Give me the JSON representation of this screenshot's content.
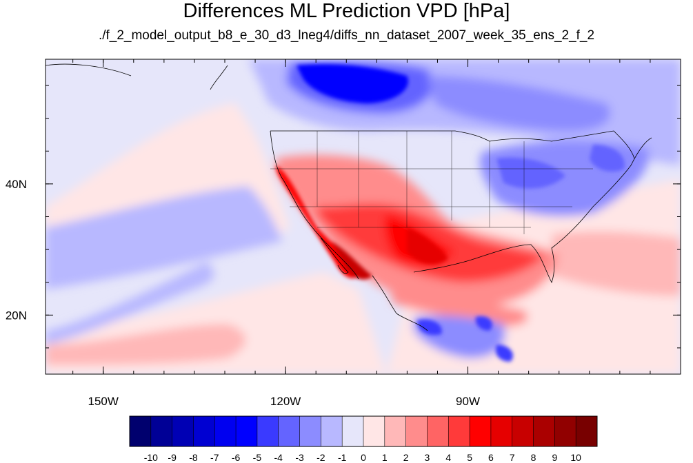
{
  "title": "Differences ML Prediction VPD [hPa]",
  "subtitle": "./f_2_model_output_b8_e_30_d3_lneg4/diffs_nn_dataset_2007_week_35_ens_2_f_2",
  "axes": {
    "lat_ticks": [
      {
        "value": 40,
        "label": "40N"
      },
      {
        "value": 20,
        "label": "20N"
      }
    ],
    "lon_ticks": [
      {
        "value": -150,
        "label": "150W"
      },
      {
        "value": -120,
        "label": "120W"
      },
      {
        "value": -90,
        "label": "90W"
      }
    ],
    "lon_range": [
      -159.5,
      -55
    ],
    "lat_range": [
      11,
      59
    ]
  },
  "colorbar": {
    "labels": [
      "-10",
      "-9",
      "-8",
      "-7",
      "-6",
      "-5",
      "-4",
      "-3",
      "-2",
      "-1",
      "0",
      "1",
      "2",
      "3",
      "4",
      "5",
      "6",
      "7",
      "8",
      "9",
      "10"
    ],
    "colors": [
      "#00006e",
      "#000096",
      "#0000b4",
      "#0000d2",
      "#0000f0",
      "#0000ff",
      "#3a3aff",
      "#6464ff",
      "#8c8cff",
      "#b8b8ff",
      "#e6e6fa",
      "#ffe6e6",
      "#ffb8b8",
      "#ff8c8c",
      "#ff6464",
      "#ff3a3a",
      "#ff0000",
      "#e60000",
      "#c80000",
      "#aa0000",
      "#910000",
      "#780000"
    ]
  }
}
